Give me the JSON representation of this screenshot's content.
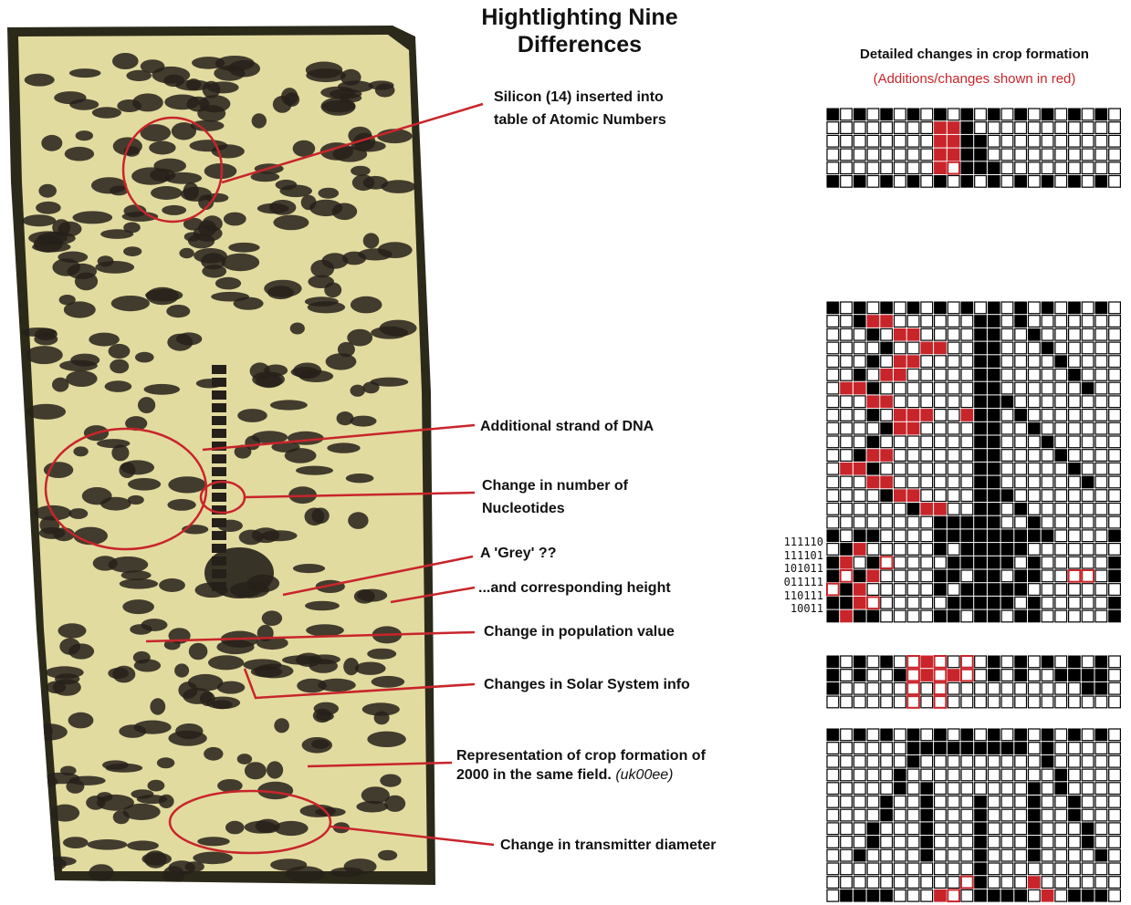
{
  "title": "Hightlighting Nine Differences",
  "grid_header": {
    "title": "Detailed changes in crop formation",
    "subtitle": "(Additions/changes shown in red)"
  },
  "binary_labels": [
    "111110",
    "111101",
    "101011",
    "011111",
    "110111",
    "10011"
  ],
  "annotations": {
    "silicon": "Silicon (14) inserted into\ntable of Atomic Numbers",
    "dna": "Additional strand of DNA",
    "nucleotides": "Change in number of\nNucleotides",
    "grey": "A 'Grey' ??",
    "height": "...and corresponding height",
    "population": "Change in population value",
    "solar": "Changes in Solar System info",
    "representation": "Representation of crop formation of\n2000 in the same field.",
    "representation_ref": "(uk00ee)",
    "transmitter": "Change in transmitter diameter"
  },
  "colors": {
    "highlight": "#c8252b",
    "field": "#e6e0a6",
    "cell_filled": "#000000"
  }
}
